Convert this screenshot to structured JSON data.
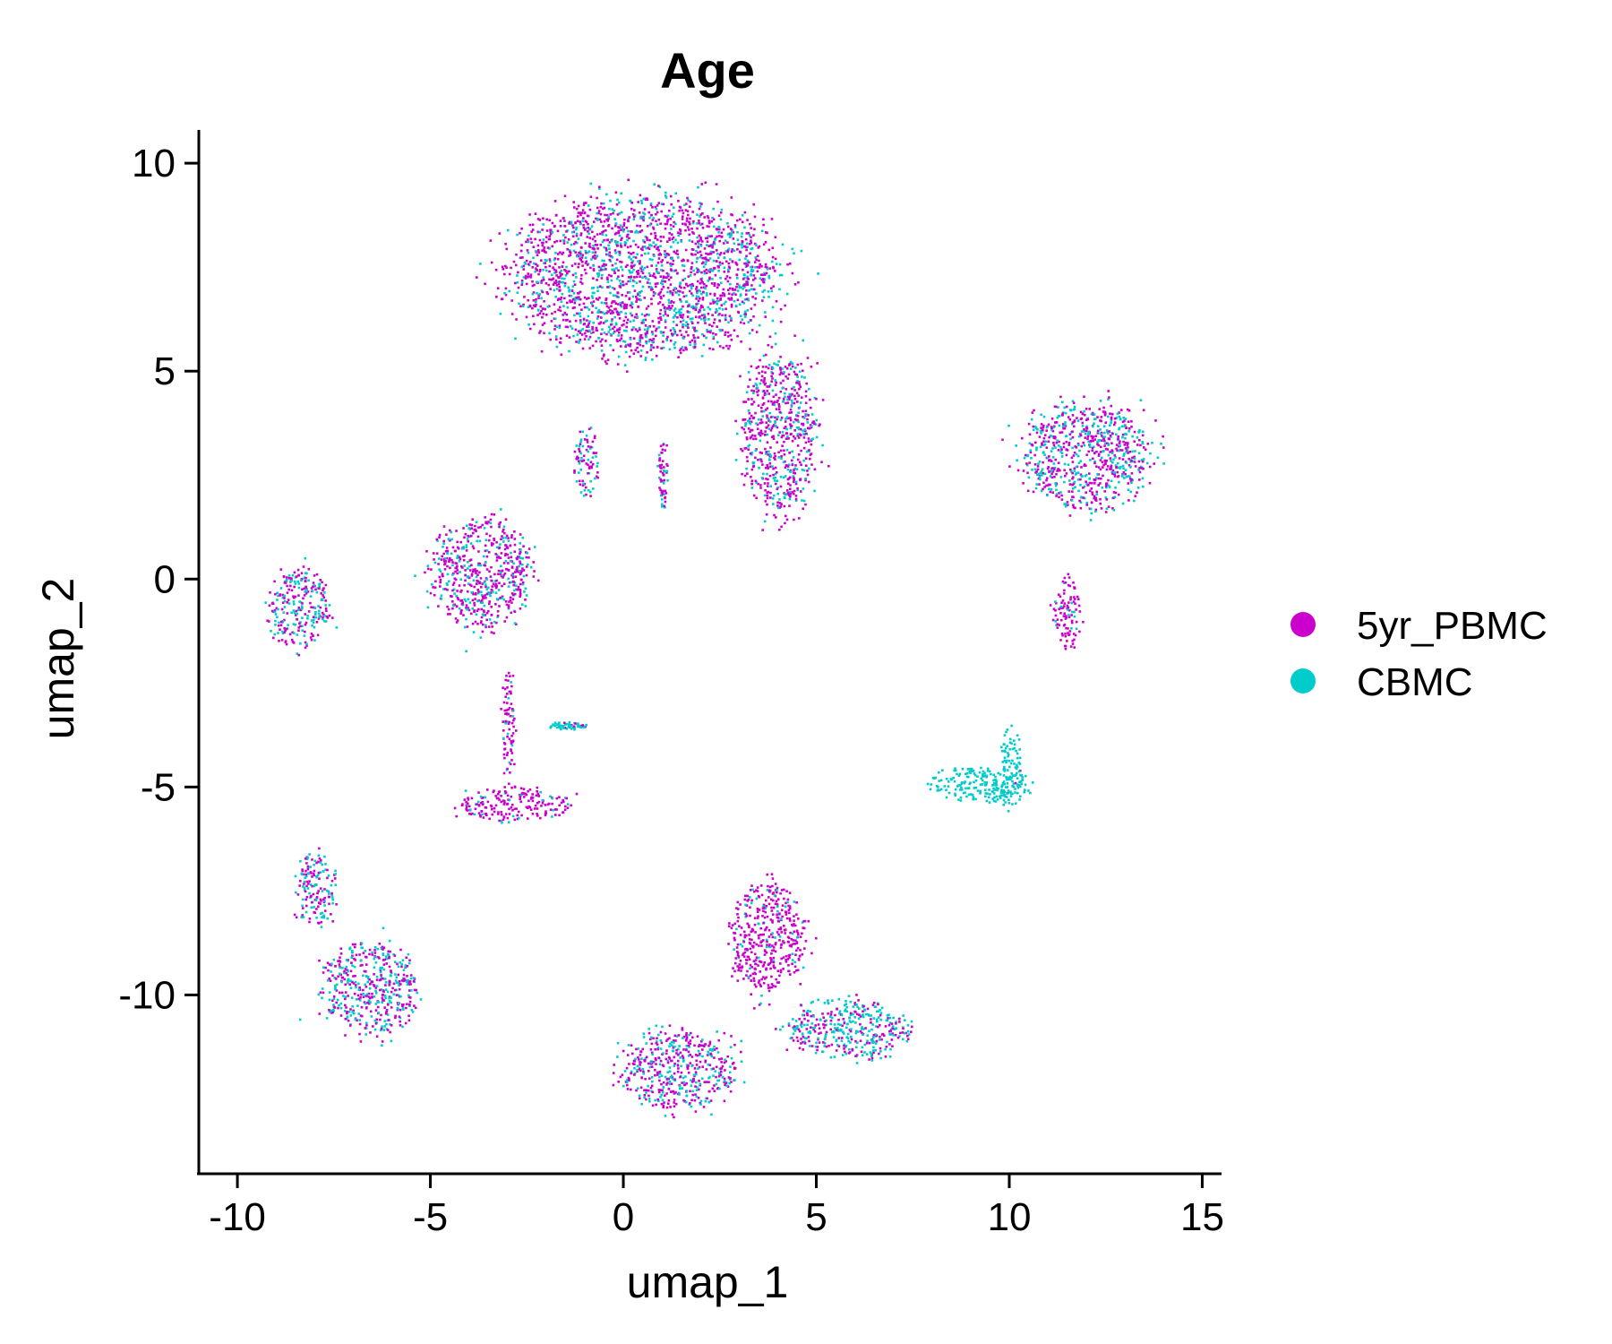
{
  "chart_data": {
    "type": "scatter",
    "title": "Age",
    "xlabel": "umap_1",
    "ylabel": "umap_2",
    "xlim": [
      -11,
      15.5
    ],
    "ylim": [
      -14.3,
      10.8
    ],
    "x_ticks": [
      -10,
      -5,
      0,
      5,
      10,
      15
    ],
    "y_ticks": [
      -10,
      -5,
      0,
      5,
      10
    ],
    "x_tick_labels": [
      "-10",
      "-5",
      "0",
      "5",
      "10",
      "15"
    ],
    "y_tick_labels": [
      "-10",
      "-5",
      "0",
      "5",
      "10"
    ],
    "grid": false,
    "legend_position": "right",
    "series": [
      {
        "name": "5yr_PBMC",
        "color": "#CC00CC"
      },
      {
        "name": "CBMC",
        "color": "#00CCCC"
      }
    ],
    "clusters": [
      {
        "cx": 0.5,
        "cy": 7.3,
        "rx": 4.0,
        "ry": 2.1,
        "mix": 0.65
      },
      {
        "cx": 4.0,
        "cy": 3.5,
        "rx": 1.1,
        "ry": 2.2,
        "mix": 0.7
      },
      {
        "cx": 12.0,
        "cy": 3.0,
        "rx": 1.9,
        "ry": 1.5,
        "mix": 0.55
      },
      {
        "cx": -3.7,
        "cy": 0.2,
        "rx": 1.5,
        "ry": 1.5,
        "mix": 0.72
      },
      {
        "cx": -8.4,
        "cy": -0.7,
        "rx": 0.9,
        "ry": 1.1,
        "mix": 0.5
      },
      {
        "cx": -2.9,
        "cy": -5.4,
        "rx": 1.7,
        "ry": 0.45,
        "mix": 0.85
      },
      {
        "cx": -6.6,
        "cy": -9.8,
        "rx": 1.4,
        "ry": 1.3,
        "mix": 0.5
      },
      {
        "cx": -8.0,
        "cy": -7.4,
        "rx": 0.6,
        "ry": 1.0,
        "mix": 0.55
      },
      {
        "cx": 1.4,
        "cy": -11.8,
        "rx": 1.7,
        "ry": 1.1,
        "mix": 0.62
      },
      {
        "cx": 3.7,
        "cy": -8.6,
        "rx": 1.1,
        "ry": 1.5,
        "mix": 0.88
      },
      {
        "cx": 5.8,
        "cy": -10.8,
        "rx": 1.9,
        "ry": 0.8,
        "mix": 0.4
      },
      {
        "cx": -3.0,
        "cy": -3.4,
        "rx": 0.2,
        "ry": 1.6,
        "mix": 0.85
      },
      {
        "cx": -1.0,
        "cy": 2.8,
        "rx": 0.35,
        "ry": 0.9,
        "mix": 0.55
      },
      {
        "cx": 1.0,
        "cy": 2.6,
        "rx": 0.15,
        "ry": 0.9,
        "mix": 0.7
      },
      {
        "cx": -1.5,
        "cy": -3.5,
        "rx": 0.6,
        "ry": 0.1,
        "mix": 0.2
      },
      {
        "cx": 11.5,
        "cy": -0.8,
        "rx": 0.4,
        "ry": 1.0,
        "mix": 0.9
      },
      {
        "cx": 9.2,
        "cy": -4.9,
        "rx": 1.5,
        "ry": 0.5,
        "mix": 0.0
      },
      {
        "cx": 10.0,
        "cy": -4.5,
        "rx": 0.35,
        "ry": 1.1,
        "mix": 0.05
      }
    ]
  }
}
